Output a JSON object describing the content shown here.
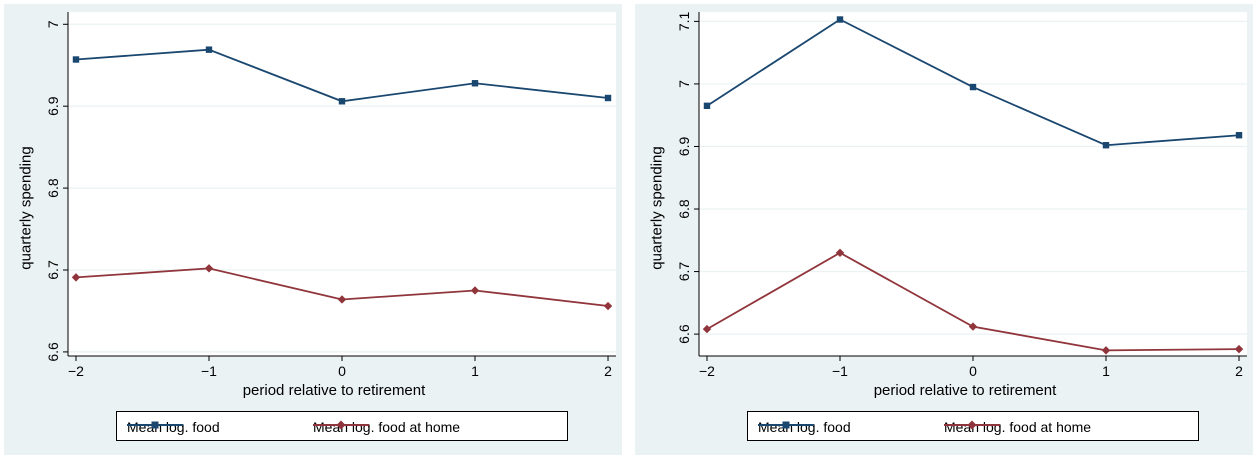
{
  "colors": {
    "background": "#eaf2f3",
    "plot": "#ffffff",
    "series_food": "#1a476f",
    "series_home": "#90353b"
  },
  "chart_data": [
    {
      "type": "line",
      "xlabel": "period relative to retirement",
      "ylabel": "quarterly spending",
      "x": [
        -2,
        -1,
        0,
        1,
        2
      ],
      "xticks": [
        "−2",
        "−1",
        "0",
        "1",
        "2"
      ],
      "xlim": [
        -2.06,
        2.06
      ],
      "yticks": [
        "6.6",
        "6.7",
        "6.8",
        "6.9",
        "7"
      ],
      "ytick_values": [
        6.6,
        6.7,
        6.8,
        6.9,
        7.0
      ],
      "ylim": [
        6.595,
        7.015
      ],
      "grid": true,
      "legend": "bottom",
      "series": [
        {
          "name": "Mean log. food",
          "marker": "square",
          "values": [
            6.957,
            6.969,
            6.906,
            6.928,
            6.91
          ]
        },
        {
          "name": "Mean log. food at home",
          "marker": "diamond",
          "values": [
            6.691,
            6.702,
            6.664,
            6.675,
            6.656
          ]
        }
      ]
    },
    {
      "type": "line",
      "xlabel": "period relative to retirement",
      "ylabel": "quarterly spending",
      "x": [
        -2,
        -1,
        0,
        1,
        2
      ],
      "xticks": [
        "−2",
        "−1",
        "0",
        "1",
        "2"
      ],
      "xlim": [
        -2.06,
        2.06
      ],
      "yticks": [
        "6.6",
        "6.7",
        "6.8",
        "6.9",
        "7",
        "7.1"
      ],
      "ytick_values": [
        6.6,
        6.7,
        6.8,
        6.9,
        7.0,
        7.1
      ],
      "ylim": [
        6.565,
        7.115
      ],
      "grid": true,
      "legend": "bottom",
      "series": [
        {
          "name": "Mean log. food",
          "marker": "square",
          "values": [
            6.965,
            7.103,
            6.995,
            6.902,
            6.918
          ]
        },
        {
          "name": "Mean log. food at home",
          "marker": "diamond",
          "values": [
            6.608,
            6.73,
            6.612,
            6.574,
            6.576
          ]
        }
      ]
    }
  ]
}
